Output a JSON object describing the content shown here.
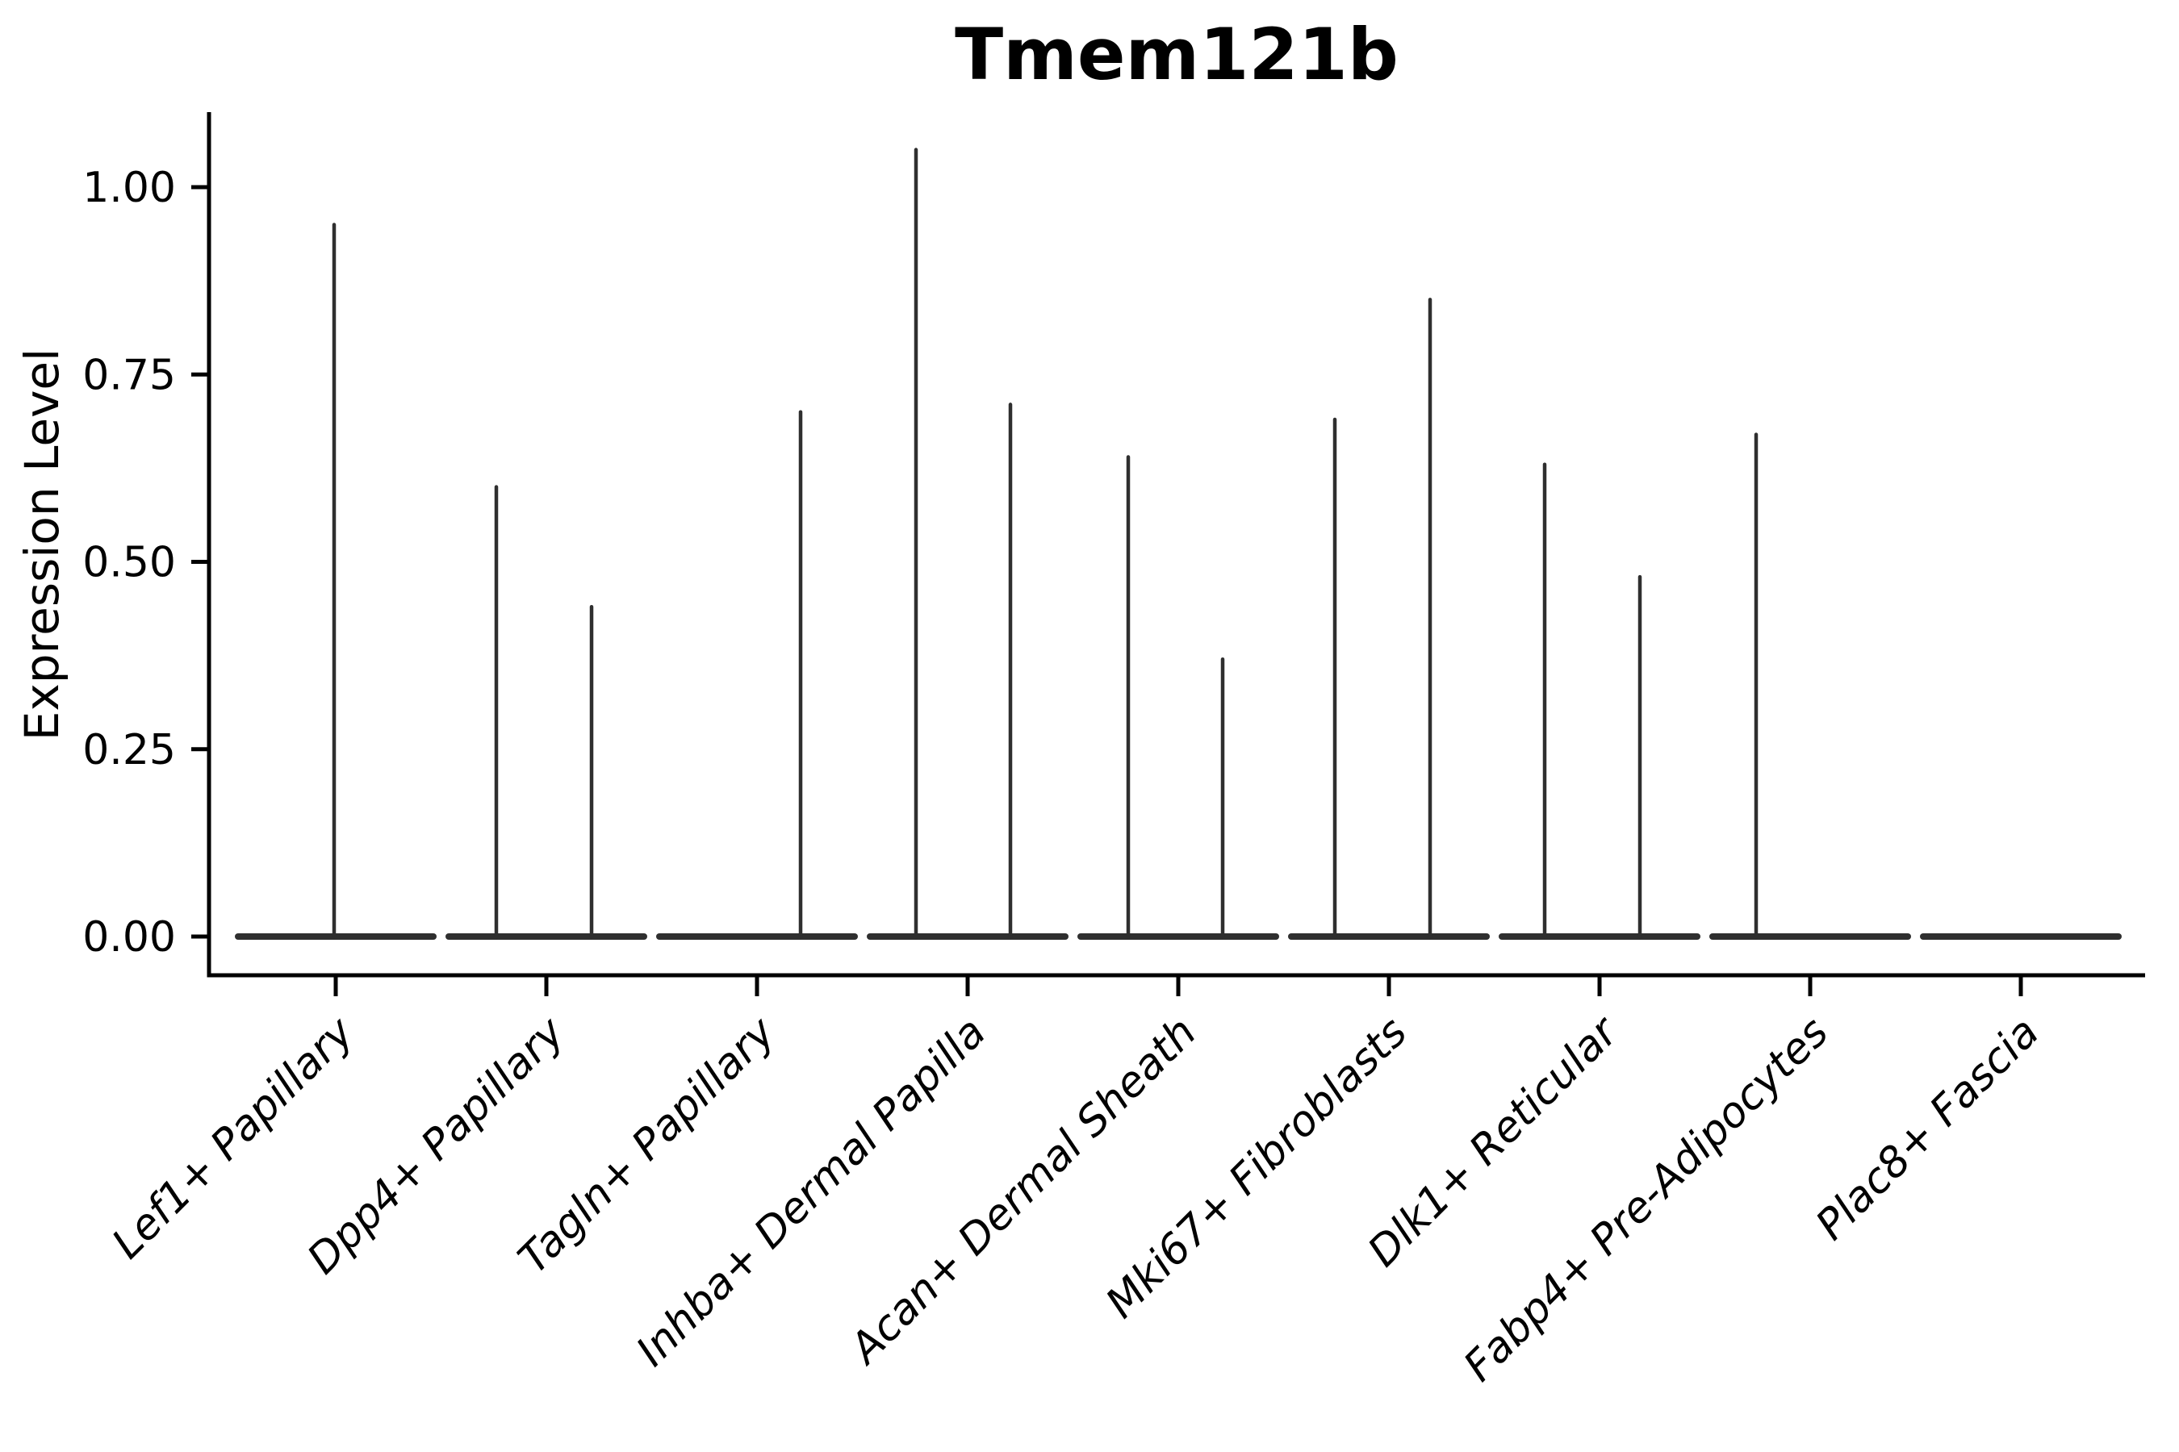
{
  "chart_data": {
    "type": "violin",
    "title": "Tmem121b",
    "ylabel": "Expression Level",
    "xlabel": "",
    "legend": "none",
    "grid": false,
    "ylim": [
      0,
      1.1
    ],
    "yticks": [
      {
        "value": 0.0,
        "label": "0.00"
      },
      {
        "value": 0.25,
        "label": "0.25"
      },
      {
        "value": 0.5,
        "label": "0.50"
      },
      {
        "value": 0.75,
        "label": "0.75"
      },
      {
        "value": 1.0,
        "label": "1.00"
      }
    ],
    "violin_color": "#2f2f2f",
    "axis_color": "#000000",
    "categories": [
      {
        "label": "Lef1+ Papillary",
        "spikes": [
          {
            "dx": -2,
            "value": 0.95
          }
        ]
      },
      {
        "label": "Dpp4+ Papillary",
        "spikes": [
          {
            "dx": -62,
            "value": 0.6
          },
          {
            "dx": 56,
            "value": 0.44
          }
        ]
      },
      {
        "label": "Tagln+ Papillary",
        "spikes": [
          {
            "dx": 54,
            "value": 0.7
          }
        ]
      },
      {
        "label": "Inhba+ Dermal Papilla",
        "spikes": [
          {
            "dx": -64,
            "value": 1.05
          },
          {
            "dx": 53,
            "value": 0.71
          }
        ]
      },
      {
        "label": "Acan+ Dermal Sheath",
        "spikes": [
          {
            "dx": -62,
            "value": 0.64
          },
          {
            "dx": 55,
            "value": 0.37
          }
        ]
      },
      {
        "label": "Mki67+ Fibroblasts",
        "spikes": [
          {
            "dx": -67,
            "value": 0.69
          },
          {
            "dx": 51,
            "value": 0.85
          }
        ]
      },
      {
        "label": "Dlk1+ Reticular",
        "spikes": [
          {
            "dx": -68,
            "value": 0.63
          },
          {
            "dx": 50,
            "value": 0.48
          }
        ]
      },
      {
        "label": "Fabp4+ Pre-Adipocytes",
        "spikes": [
          {
            "dx": -67,
            "value": 0.67
          }
        ]
      },
      {
        "label": "Plac8+ Fascia",
        "spikes": []
      }
    ]
  }
}
